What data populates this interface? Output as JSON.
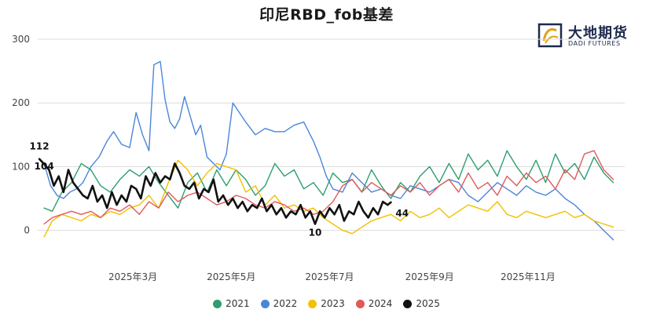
{
  "chart_data": {
    "type": "line",
    "title": "印尼RBD_fob基差",
    "ylim": [
      -30,
      300
    ],
    "yticks": [
      0,
      100,
      200,
      300
    ],
    "xlim": [
      "2025-01-01",
      "2025-12-31"
    ],
    "xtick_labels": [
      {
        "date": "2025-03-01",
        "label": "2025年3月"
      },
      {
        "date": "2025-05-01",
        "label": "2025年5月"
      },
      {
        "date": "2025-07-01",
        "label": "2025年7月"
      },
      {
        "date": "2025-09-01",
        "label": "2025年9月"
      },
      {
        "date": "2025-11-01",
        "label": "2025年11月"
      }
    ],
    "grid": "horizontal",
    "legend_position": "bottom",
    "series": [
      {
        "name": "2021",
        "color": "#2e9e6e",
        "x": [
          "2025-01-05",
          "2025-01-10",
          "2025-01-16",
          "2025-01-22",
          "2025-01-28",
          "2025-02-03",
          "2025-02-09",
          "2025-02-15",
          "2025-02-21",
          "2025-02-27",
          "2025-03-05",
          "2025-03-11",
          "2025-03-17",
          "2025-03-23",
          "2025-03-29",
          "2025-04-04",
          "2025-04-10",
          "2025-04-16",
          "2025-04-22",
          "2025-04-28",
          "2025-05-04",
          "2025-05-10",
          "2025-05-16",
          "2025-05-22",
          "2025-05-28",
          "2025-06-03",
          "2025-06-09",
          "2025-06-15",
          "2025-06-21",
          "2025-06-27",
          "2025-07-03",
          "2025-07-09",
          "2025-07-15",
          "2025-07-21",
          "2025-07-27",
          "2025-08-02",
          "2025-08-08",
          "2025-08-14",
          "2025-08-20",
          "2025-08-26",
          "2025-09-01",
          "2025-09-07",
          "2025-09-13",
          "2025-09-19",
          "2025-09-25",
          "2025-10-01",
          "2025-10-07",
          "2025-10-13",
          "2025-10-19",
          "2025-10-25",
          "2025-10-31",
          "2025-11-06",
          "2025-11-12",
          "2025-11-18",
          "2025-11-24",
          "2025-11-30",
          "2025-12-06",
          "2025-12-12",
          "2025-12-18",
          "2025-12-24"
        ],
        "values": [
          35,
          30,
          60,
          75,
          105,
          95,
          70,
          60,
          80,
          95,
          85,
          100,
          75,
          55,
          35,
          75,
          90,
          60,
          95,
          70,
          95,
          80,
          55,
          70,
          105,
          85,
          95,
          65,
          75,
          55,
          90,
          75,
          80,
          60,
          95,
          70,
          50,
          75,
          60,
          85,
          100,
          75,
          105,
          80,
          120,
          95,
          110,
          85,
          125,
          100,
          80,
          110,
          75,
          120,
          90,
          105,
          80,
          115,
          90,
          75
        ]
      },
      {
        "name": "2022",
        "color": "#4a86d8",
        "x": [
          "2025-01-05",
          "2025-01-09",
          "2025-01-13",
          "2025-01-17",
          "2025-01-21",
          "2025-01-25",
          "2025-01-29",
          "2025-02-03",
          "2025-02-08",
          "2025-02-13",
          "2025-02-17",
          "2025-02-22",
          "2025-02-27",
          "2025-03-03",
          "2025-03-07",
          "2025-03-11",
          "2025-03-14",
          "2025-03-18",
          "2025-03-21",
          "2025-03-24",
          "2025-03-27",
          "2025-03-30",
          "2025-04-02",
          "2025-04-06",
          "2025-04-09",
          "2025-04-12",
          "2025-04-16",
          "2025-04-20",
          "2025-04-24",
          "2025-04-28",
          "2025-05-02",
          "2025-05-06",
          "2025-05-10",
          "2025-05-16",
          "2025-05-22",
          "2025-05-28",
          "2025-06-03",
          "2025-06-09",
          "2025-06-15",
          "2025-06-21",
          "2025-06-25",
          "2025-06-29",
          "2025-07-03",
          "2025-07-09",
          "2025-07-15",
          "2025-07-21",
          "2025-07-27",
          "2025-08-02",
          "2025-08-08",
          "2025-08-14",
          "2025-08-20",
          "2025-08-26",
          "2025-09-01",
          "2025-09-07",
          "2025-09-13",
          "2025-09-19",
          "2025-09-25",
          "2025-10-01",
          "2025-10-07",
          "2025-10-13",
          "2025-10-19",
          "2025-10-25",
          "2025-10-31",
          "2025-11-06",
          "2025-11-12",
          "2025-11-18",
          "2025-11-24",
          "2025-11-30",
          "2025-12-06",
          "2025-12-12",
          "2025-12-16",
          "2025-12-20",
          "2025-12-24"
        ],
        "values": [
          105,
          70,
          55,
          50,
          60,
          65,
          75,
          100,
          115,
          140,
          155,
          135,
          130,
          185,
          150,
          125,
          260,
          265,
          205,
          170,
          160,
          175,
          210,
          175,
          150,
          165,
          115,
          105,
          95,
          120,
          200,
          185,
          170,
          150,
          160,
          155,
          155,
          165,
          170,
          140,
          115,
          85,
          65,
          60,
          90,
          75,
          60,
          65,
          55,
          50,
          70,
          65,
          60,
          70,
          80,
          75,
          55,
          45,
          60,
          75,
          65,
          55,
          70,
          60,
          55,
          65,
          50,
          40,
          25,
          15,
          5,
          -5,
          -15
        ]
      },
      {
        "name": "2023",
        "color": "#f2c000",
        "x": [
          "2025-01-05",
          "2025-01-10",
          "2025-01-16",
          "2025-01-22",
          "2025-01-28",
          "2025-02-03",
          "2025-02-09",
          "2025-02-15",
          "2025-02-21",
          "2025-02-27",
          "2025-03-05",
          "2025-03-11",
          "2025-03-17",
          "2025-03-23",
          "2025-03-29",
          "2025-04-04",
          "2025-04-10",
          "2025-04-16",
          "2025-04-22",
          "2025-04-28",
          "2025-05-04",
          "2025-05-10",
          "2025-05-16",
          "2025-05-22",
          "2025-05-28",
          "2025-06-03",
          "2025-06-09",
          "2025-06-15",
          "2025-06-21",
          "2025-06-27",
          "2025-07-03",
          "2025-07-09",
          "2025-07-15",
          "2025-07-21",
          "2025-07-27",
          "2025-08-02",
          "2025-08-08",
          "2025-08-14",
          "2025-08-20",
          "2025-08-26",
          "2025-09-01",
          "2025-09-07",
          "2025-09-13",
          "2025-09-19",
          "2025-09-25",
          "2025-10-01",
          "2025-10-07",
          "2025-10-13",
          "2025-10-19",
          "2025-10-25",
          "2025-10-31",
          "2025-11-06",
          "2025-11-12",
          "2025-11-18",
          "2025-11-24",
          "2025-11-30",
          "2025-12-06",
          "2025-12-12",
          "2025-12-18",
          "2025-12-24"
        ],
        "values": [
          -10,
          15,
          25,
          20,
          15,
          25,
          20,
          30,
          25,
          35,
          40,
          55,
          35,
          75,
          110,
          95,
          70,
          90,
          105,
          100,
          95,
          60,
          70,
          40,
          55,
          35,
          40,
          30,
          35,
          20,
          10,
          0,
          -5,
          5,
          15,
          20,
          25,
          15,
          30,
          20,
          25,
          35,
          20,
          30,
          40,
          35,
          30,
          45,
          25,
          20,
          30,
          25,
          20,
          25,
          30,
          20,
          25,
          15,
          10,
          5
        ]
      },
      {
        "name": "2024",
        "color": "#e05a5a",
        "x": [
          "2025-01-05",
          "2025-01-10",
          "2025-01-16",
          "2025-01-22",
          "2025-01-28",
          "2025-02-03",
          "2025-02-09",
          "2025-02-15",
          "2025-02-21",
          "2025-02-27",
          "2025-03-05",
          "2025-03-11",
          "2025-03-17",
          "2025-03-23",
          "2025-03-29",
          "2025-04-04",
          "2025-04-10",
          "2025-04-16",
          "2025-04-22",
          "2025-04-28",
          "2025-05-04",
          "2025-05-10",
          "2025-05-16",
          "2025-05-22",
          "2025-05-28",
          "2025-06-03",
          "2025-06-09",
          "2025-06-15",
          "2025-06-21",
          "2025-06-27",
          "2025-07-03",
          "2025-07-09",
          "2025-07-15",
          "2025-07-21",
          "2025-07-27",
          "2025-08-02",
          "2025-08-08",
          "2025-08-14",
          "2025-08-20",
          "2025-08-26",
          "2025-09-01",
          "2025-09-07",
          "2025-09-13",
          "2025-09-19",
          "2025-09-25",
          "2025-10-01",
          "2025-10-07",
          "2025-10-13",
          "2025-10-19",
          "2025-10-25",
          "2025-10-31",
          "2025-11-06",
          "2025-11-12",
          "2025-11-18",
          "2025-11-24",
          "2025-11-30",
          "2025-12-06",
          "2025-12-12",
          "2025-12-18",
          "2025-12-24"
        ],
        "values": [
          10,
          20,
          25,
          30,
          25,
          30,
          20,
          35,
          30,
          40,
          25,
          45,
          35,
          60,
          45,
          55,
          60,
          50,
          40,
          45,
          55,
          50,
          40,
          35,
          45,
          40,
          30,
          35,
          25,
          30,
          45,
          70,
          80,
          60,
          75,
          65,
          55,
          70,
          60,
          75,
          55,
          70,
          80,
          60,
          90,
          65,
          75,
          55,
          85,
          70,
          90,
          75,
          85,
          65,
          95,
          80,
          120,
          125,
          95,
          80
        ]
      },
      {
        "name": "2025",
        "color": "#111111",
        "x": [
          "2025-01-02",
          "2025-01-05",
          "2025-01-08",
          "2025-01-11",
          "2025-01-14",
          "2025-01-17",
          "2025-01-20",
          "2025-01-23",
          "2025-01-26",
          "2025-01-29",
          "2025-02-01",
          "2025-02-04",
          "2025-02-07",
          "2025-02-10",
          "2025-02-13",
          "2025-02-16",
          "2025-02-19",
          "2025-02-22",
          "2025-02-25",
          "2025-02-28",
          "2025-03-03",
          "2025-03-06",
          "2025-03-09",
          "2025-03-12",
          "2025-03-15",
          "2025-03-18",
          "2025-03-21",
          "2025-03-24",
          "2025-03-27",
          "2025-03-30",
          "2025-04-02",
          "2025-04-05",
          "2025-04-08",
          "2025-04-11",
          "2025-04-14",
          "2025-04-17",
          "2025-04-20",
          "2025-04-23",
          "2025-04-26",
          "2025-04-29",
          "2025-05-02",
          "2025-05-05",
          "2025-05-08",
          "2025-05-11",
          "2025-05-14",
          "2025-05-17",
          "2025-05-20",
          "2025-05-23",
          "2025-05-26",
          "2025-05-29",
          "2025-06-01",
          "2025-06-04",
          "2025-06-07",
          "2025-06-10",
          "2025-06-13",
          "2025-06-16",
          "2025-06-19",
          "2025-06-22",
          "2025-06-25",
          "2025-06-28",
          "2025-07-01",
          "2025-07-04",
          "2025-07-07",
          "2025-07-10",
          "2025-07-13",
          "2025-07-16",
          "2025-07-19",
          "2025-07-22",
          "2025-07-25",
          "2025-07-28",
          "2025-07-31",
          "2025-08-03",
          "2025-08-06",
          "2025-08-08"
        ],
        "values": [
          112,
          104,
          95,
          70,
          85,
          60,
          95,
          75,
          65,
          55,
          50,
          70,
          45,
          55,
          35,
          60,
          40,
          55,
          45,
          70,
          65,
          50,
          85,
          70,
          90,
          75,
          85,
          80,
          105,
          90,
          70,
          65,
          75,
          50,
          65,
          60,
          80,
          45,
          55,
          40,
          50,
          35,
          45,
          30,
          40,
          35,
          50,
          30,
          40,
          25,
          35,
          20,
          30,
          25,
          40,
          20,
          30,
          10,
          30,
          20,
          35,
          25,
          40,
          15,
          30,
          25,
          45,
          30,
          20,
          35,
          25,
          45,
          40,
          44
        ]
      }
    ],
    "annotations": [
      {
        "series": "2025",
        "date": "2025-01-02",
        "value": 112,
        "text": "112"
      },
      {
        "series": "2025",
        "date": "2025-01-05",
        "value": 104,
        "text": "104"
      },
      {
        "series": "2025",
        "date": "2025-06-22",
        "value": 10,
        "text": "10"
      },
      {
        "series": "2025",
        "date": "2025-08-08",
        "value": 44,
        "text": "44"
      }
    ]
  },
  "logo": {
    "cn_text": "大地期货",
    "en_text": "DADI FUTURES",
    "colors": {
      "navy": "#1c2a4d",
      "gold": "#e0a21a"
    }
  }
}
